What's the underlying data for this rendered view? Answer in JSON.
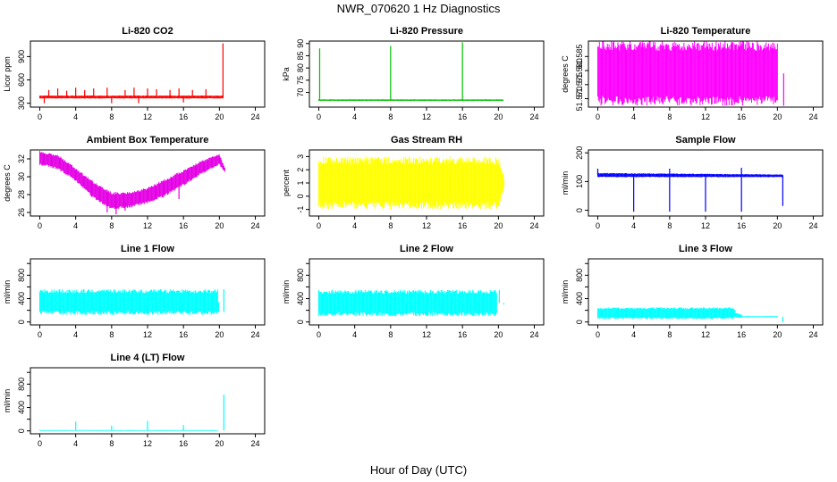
{
  "figure": {
    "title": "NWR_070620  1 Hz Diagnostics",
    "xlabel": "Hour of Day (UTC)"
  },
  "chart_data": [
    {
      "type": "line",
      "title": "Li-820 CO2",
      "ylabel": "Licor ppm",
      "color": "#ff0000",
      "xlim": [
        0,
        24
      ],
      "ylim": [
        250,
        1100
      ],
      "xticks": [
        0,
        4,
        8,
        12,
        16,
        20,
        24
      ],
      "yticks": [
        300,
        600,
        900
      ],
      "band": [
        [
          0,
          360,
          400
        ],
        [
          20.4,
          360,
          400
        ]
      ],
      "spikes": [
        [
          0.5,
          300
        ],
        [
          1.0,
          470
        ],
        [
          2.0,
          490
        ],
        [
          3.0,
          460
        ],
        [
          4.0,
          500
        ],
        [
          5.0,
          470
        ],
        [
          6.0,
          490
        ],
        [
          7.5,
          500
        ],
        [
          8.0,
          300
        ],
        [
          9.5,
          470
        ],
        [
          10.5,
          500
        ],
        [
          11.0,
          300
        ],
        [
          12.0,
          490
        ],
        [
          13.0,
          480
        ],
        [
          14.5,
          470
        ],
        [
          15.5,
          490
        ],
        [
          16.0,
          310
        ],
        [
          17.0,
          470
        ],
        [
          18.5,
          480
        ],
        [
          20.4,
          1070
        ]
      ]
    },
    {
      "type": "line",
      "title": "Li-820 Pressure",
      "ylabel": "kPa",
      "color": "#00c000",
      "xlim": [
        0,
        24
      ],
      "ylim": [
        64,
        91
      ],
      "xticks": [
        0,
        4,
        8,
        12,
        16,
        20,
        24
      ],
      "yticks": [
        70,
        75,
        80,
        85,
        90
      ],
      "band": [
        [
          0,
          66.5,
          67.2
        ],
        [
          20.5,
          66.5,
          67.2
        ]
      ],
      "spikes": [
        [
          0.1,
          88
        ],
        [
          8.0,
          89
        ],
        [
          16.0,
          90.5
        ]
      ]
    },
    {
      "type": "area",
      "title": "Li-820 Temperature",
      "ylabel": "degrees C",
      "color": "#ff00ff",
      "xlim": [
        0,
        24
      ],
      "ylim": [
        51.567,
        51.5905
      ],
      "xticks": [
        0,
        4,
        8,
        12,
        16,
        20,
        24
      ],
      "yticks": [
        51.57,
        51.575,
        51.58,
        51.585
      ],
      "ytick_labels": [
        "51.570",
        "51.575",
        "51.580",
        "51.585"
      ],
      "band": [
        [
          0,
          51.5675,
          51.5905
        ],
        [
          20.0,
          51.5675,
          51.5905
        ]
      ],
      "spikes": [
        [
          20.7,
          51.5675
        ]
      ]
    },
    {
      "type": "line",
      "title": "Ambient Box Temperature",
      "ylabel": "degrees C",
      "color": "#e400e4",
      "xlim": [
        0,
        24
      ],
      "ylim": [
        25.6,
        33.0
      ],
      "xticks": [
        0,
        4,
        8,
        12,
        16,
        20,
        24
      ],
      "yticks": [
        26,
        28,
        30,
        32
      ],
      "band": [
        [
          0,
          31.3,
          32.9
        ],
        [
          2,
          30.8,
          32.5
        ],
        [
          4,
          29.5,
          31.0
        ],
        [
          6,
          27.5,
          29.5
        ],
        [
          8,
          26.3,
          28.3
        ],
        [
          10,
          26.5,
          28.3
        ],
        [
          12,
          27.0,
          28.8
        ],
        [
          14,
          27.8,
          29.8
        ],
        [
          16,
          29.0,
          30.8
        ],
        [
          18,
          30.3,
          31.8
        ],
        [
          20,
          31.3,
          32.6
        ],
        [
          20.6,
          30.5,
          31.0
        ]
      ],
      "spikes": [
        [
          7.5,
          26.0
        ],
        [
          8.5,
          25.8
        ],
        [
          9.5,
          26.2
        ],
        [
          15.5,
          27.5
        ]
      ]
    },
    {
      "type": "line",
      "title": "Gas Stream RH",
      "ylabel": "percent",
      "color": "#ffff00",
      "xlim": [
        0,
        24
      ],
      "ylim": [
        -1.5,
        3.5
      ],
      "xticks": [
        0,
        4,
        8,
        12,
        16,
        20,
        24
      ],
      "yticks": [
        -1,
        0,
        1,
        2,
        3
      ],
      "band": [
        [
          0,
          -1.0,
          3.0
        ],
        [
          20,
          -1.0,
          3.0
        ],
        [
          20.6,
          0.5,
          1.5
        ]
      ],
      "spikes": []
    },
    {
      "type": "line",
      "title": "Sample Flow",
      "ylabel": "ml/min",
      "color": "#0000ff",
      "xlim": [
        0,
        24
      ],
      "ylim": [
        -20,
        210
      ],
      "xticks": [
        0,
        4,
        8,
        12,
        16,
        20,
        24
      ],
      "yticks": [
        0,
        100,
        200
      ],
      "band": [
        [
          0,
          115,
          130
        ],
        [
          20.5,
          115,
          125
        ]
      ],
      "spikes": [
        [
          0,
          145
        ],
        [
          4.0,
          -5
        ],
        [
          8.0,
          -5
        ],
        [
          8.0,
          145
        ],
        [
          12.0,
          -5
        ],
        [
          16.0,
          -5
        ],
        [
          16.0,
          148
        ],
        [
          20.6,
          15
        ]
      ]
    },
    {
      "type": "line",
      "title": "Line 1 Flow",
      "ylabel": "ml/min",
      "color": "#00ffff",
      "xlim": [
        0,
        24
      ],
      "ylim": [
        -50,
        1080
      ],
      "xticks": [
        0,
        4,
        8,
        12,
        16,
        20,
        24
      ],
      "yticks": [
        0,
        200,
        400,
        600,
        800,
        1000
      ],
      "ytick_labels": [
        "0",
        "",
        "400",
        "",
        "800",
        ""
      ],
      "band": [
        [
          0,
          120,
          560
        ],
        [
          19.8,
          120,
          560
        ]
      ],
      "spikes": [
        [
          3.9,
          130
        ],
        [
          7.9,
          130
        ],
        [
          11.9,
          130
        ],
        [
          15.9,
          130
        ],
        [
          19.9,
          170
        ],
        [
          20.5,
          170
        ],
        [
          20.5,
          560
        ]
      ]
    },
    {
      "type": "line",
      "title": "Line 2 Flow",
      "ylabel": "ml/min",
      "color": "#00ffff",
      "xlim": [
        0,
        24
      ],
      "ylim": [
        -50,
        1080
      ],
      "xticks": [
        0,
        4,
        8,
        12,
        16,
        20,
        24
      ],
      "yticks": [
        0,
        200,
        400,
        600,
        800,
        1000
      ],
      "ytick_labels": [
        "0",
        "",
        "400",
        "",
        "800",
        ""
      ],
      "band": [
        [
          0,
          100,
          550
        ],
        [
          19.8,
          100,
          550
        ]
      ],
      "spikes": [
        [
          1.7,
          120
        ],
        [
          3.9,
          120
        ],
        [
          5.7,
          120
        ],
        [
          7.9,
          120
        ],
        [
          9.7,
          120
        ],
        [
          11.9,
          120
        ],
        [
          13.7,
          120
        ],
        [
          15.9,
          120
        ],
        [
          17.7,
          120
        ],
        [
          20.1,
          550
        ],
        [
          20.6,
          300
        ]
      ]
    },
    {
      "type": "line",
      "title": "Line 3 Flow",
      "ylabel": "ml/min",
      "color": "#00ffff",
      "xlim": [
        0,
        24
      ],
      "ylim": [
        -50,
        1080
      ],
      "xticks": [
        0,
        4,
        8,
        12,
        16,
        20,
        24
      ],
      "yticks": [
        0,
        200,
        400,
        600,
        800,
        1000
      ],
      "ytick_labels": [
        "0",
        "",
        "400",
        "",
        "800",
        ""
      ],
      "band": [
        [
          0,
          50,
          250
        ],
        [
          15.2,
          50,
          250
        ],
        [
          15.3,
          80,
          160
        ],
        [
          16.0,
          70,
          130
        ],
        [
          16.1,
          80,
          100
        ],
        [
          20.0,
          80,
          100
        ]
      ],
      "spikes": [
        [
          1.9,
          60
        ],
        [
          3.9,
          60
        ],
        [
          5.9,
          60
        ],
        [
          7.9,
          60
        ],
        [
          9.9,
          60
        ],
        [
          11.9,
          60
        ],
        [
          13.9,
          60
        ],
        [
          20.6,
          0
        ]
      ]
    },
    {
      "type": "line",
      "title": "Line 4 (LT) Flow",
      "ylabel": "ml/min",
      "color": "#00ffff",
      "xlim": [
        0,
        24
      ],
      "ylim": [
        -50,
        1080
      ],
      "xticks": [
        0,
        4,
        8,
        12,
        16,
        20,
        24
      ],
      "yticks": [
        0,
        200,
        400,
        600,
        800,
        1000
      ],
      "ytick_labels": [
        "0",
        "",
        "400",
        "",
        "800",
        ""
      ],
      "band": [
        [
          0,
          0,
          15
        ],
        [
          19.8,
          0,
          15
        ]
      ],
      "spikes": [
        [
          4.0,
          160
        ],
        [
          8.0,
          90
        ],
        [
          12.0,
          170
        ],
        [
          16.0,
          100
        ],
        [
          20.5,
          620
        ]
      ]
    }
  ]
}
